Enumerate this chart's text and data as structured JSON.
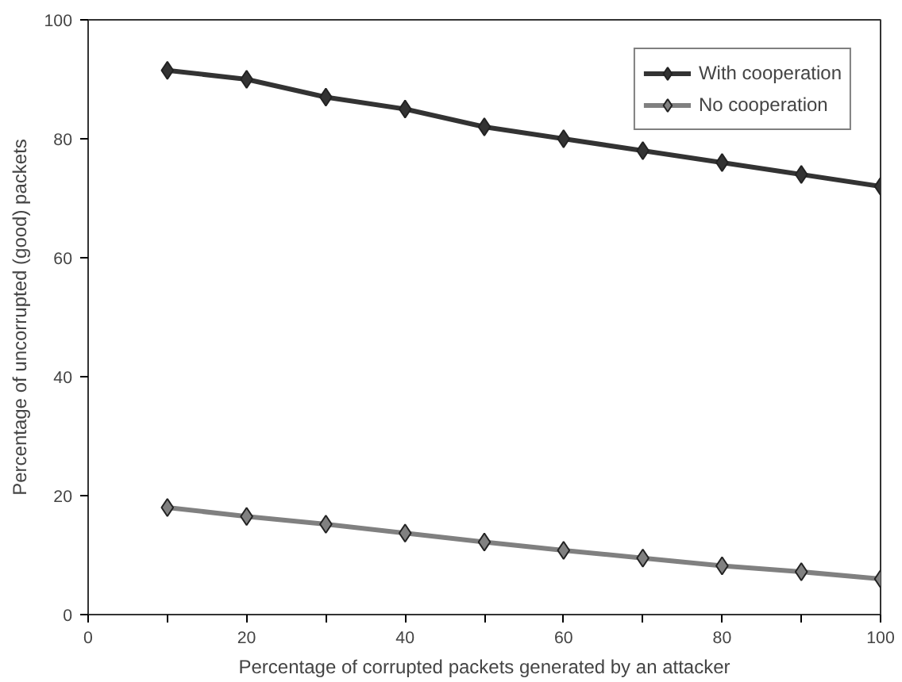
{
  "chart_data": {
    "type": "line",
    "xlabel": "Percentage of corrupted packets generated by an attacker",
    "ylabel": "Percentage of uncorrupted (good) packets",
    "x": [
      10,
      20,
      30,
      40,
      50,
      60,
      70,
      80,
      90,
      100
    ],
    "series": [
      {
        "name": "With cooperation",
        "color": "#333333",
        "values": [
          91.5,
          90,
          87,
          85,
          82,
          80,
          78,
          76,
          74,
          72
        ]
      },
      {
        "name": "No cooperation",
        "color": "#808080",
        "values": [
          18,
          16.5,
          15.2,
          13.7,
          12.2,
          10.8,
          9.5,
          8.2,
          7.2,
          6
        ]
      }
    ],
    "xlim": [
      0,
      100
    ],
    "ylim": [
      0,
      100
    ],
    "xticks": [
      0,
      {
        "value": 10,
        "label": null
      },
      20,
      {
        "value": 30,
        "label": null
      },
      40,
      {
        "value": 50,
        "label": null
      },
      60,
      {
        "value": 70,
        "label": null
      },
      80,
      {
        "value": 90,
        "label": null
      },
      100
    ],
    "yticks": [
      0,
      20,
      40,
      60,
      80,
      100
    ],
    "grid": false,
    "legend": "top right",
    "marker": "diamond",
    "line_style": "solid"
  }
}
